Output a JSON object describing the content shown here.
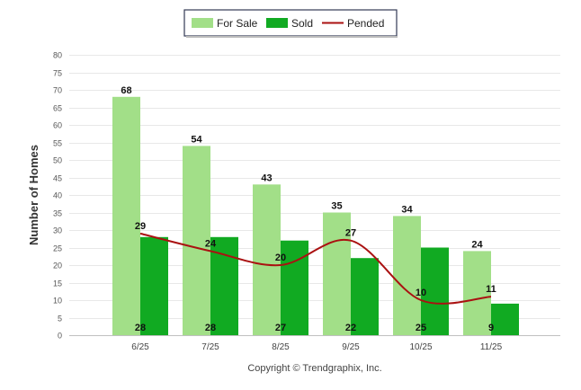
{
  "chart_data": {
    "type": "bar",
    "categories": [
      "6/25",
      "7/25",
      "8/25",
      "9/25",
      "10/25",
      "11/25"
    ],
    "series": [
      {
        "name": "For Sale",
        "type": "bar",
        "values": [
          68,
          54,
          43,
          35,
          34,
          24
        ],
        "color": "#a2df88"
      },
      {
        "name": "Sold",
        "type": "bar",
        "values": [
          28,
          28,
          27,
          22,
          25,
          9
        ],
        "color": "#11aa22"
      },
      {
        "name": "Pended",
        "type": "line",
        "values": [
          29,
          24,
          20,
          27,
          10,
          11
        ],
        "color": "#aa1111"
      }
    ],
    "title": "",
    "xlabel": "",
    "ylabel": "Number of Homes",
    "ylim": [
      0,
      80
    ],
    "ytick_step": 5,
    "grid": true,
    "legend_position": "top-center",
    "credit": "Copyright © Trendgraphix, Inc."
  }
}
